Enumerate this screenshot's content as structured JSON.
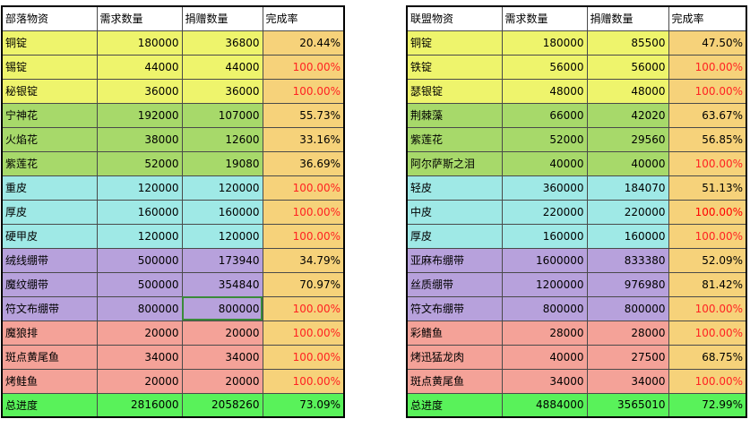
{
  "tribe": {
    "headers": [
      "部落物资",
      "需求数量",
      "捐赠数量",
      "完成率"
    ],
    "rows": [
      {
        "name": "铜锭",
        "need": "180000",
        "donated": "36800",
        "rate": "20.44%",
        "group": "yellow",
        "complete": false
      },
      {
        "name": "锡锭",
        "need": "44000",
        "donated": "44000",
        "rate": "100.00%",
        "group": "yellow",
        "complete": true
      },
      {
        "name": "秘银锭",
        "need": "36000",
        "donated": "36000",
        "rate": "100.00%",
        "group": "yellow",
        "complete": true
      },
      {
        "name": "宁神花",
        "need": "192000",
        "donated": "107000",
        "rate": "55.73%",
        "group": "green",
        "complete": false
      },
      {
        "name": "火焰花",
        "need": "38000",
        "donated": "12600",
        "rate": "33.16%",
        "group": "green",
        "complete": false
      },
      {
        "name": "紫莲花",
        "need": "52000",
        "donated": "19080",
        "rate": "36.69%",
        "group": "green",
        "complete": false
      },
      {
        "name": "重皮",
        "need": "120000",
        "donated": "120000",
        "rate": "100.00%",
        "group": "cyan",
        "complete": true
      },
      {
        "name": "厚皮",
        "need": "160000",
        "donated": "160000",
        "rate": "100.00%",
        "group": "cyan",
        "complete": true
      },
      {
        "name": "硬甲皮",
        "need": "120000",
        "donated": "120000",
        "rate": "100.00%",
        "group": "cyan",
        "complete": true
      },
      {
        "name": "绒线绷带",
        "need": "500000",
        "donated": "173940",
        "rate": "34.79%",
        "group": "purple",
        "complete": false
      },
      {
        "name": "魔纹绷带",
        "need": "500000",
        "donated": "354840",
        "rate": "70.97%",
        "group": "purple",
        "complete": false
      },
      {
        "name": "符文布绷带",
        "need": "800000",
        "donated": "800000",
        "rate": "100.00%",
        "group": "purple",
        "complete": true,
        "selected": true
      },
      {
        "name": "魔狼排",
        "need": "20000",
        "donated": "20000",
        "rate": "100.00%",
        "group": "pink",
        "complete": true
      },
      {
        "name": "斑点黄尾鱼",
        "need": "34000",
        "donated": "34000",
        "rate": "100.00%",
        "group": "pink",
        "complete": true
      },
      {
        "name": "烤鲑鱼",
        "need": "20000",
        "donated": "20000",
        "rate": "100.00%",
        "group": "pink",
        "complete": true
      }
    ],
    "total": {
      "name": "总进度",
      "need": "2816000",
      "donated": "2058260",
      "rate": "73.09%"
    }
  },
  "alliance": {
    "headers": [
      "联盟物资",
      "需求数量",
      "捐赠数量",
      "完成率"
    ],
    "rows": [
      {
        "name": "铜锭",
        "need": "180000",
        "donated": "85500",
        "rate": "47.50%",
        "group": "yellow",
        "complete": false
      },
      {
        "name": "铁锭",
        "need": "56000",
        "donated": "56000",
        "rate": "100.00%",
        "group": "yellow",
        "complete": true
      },
      {
        "name": "瑟银锭",
        "need": "48000",
        "donated": "48000",
        "rate": "100.00%",
        "group": "yellow",
        "complete": true
      },
      {
        "name": "荆棘藻",
        "need": "66000",
        "donated": "42020",
        "rate": "63.67%",
        "group": "green",
        "complete": false
      },
      {
        "name": "紫莲花",
        "need": "52000",
        "donated": "29560",
        "rate": "56.85%",
        "group": "green",
        "complete": false
      },
      {
        "name": "阿尔萨斯之泪",
        "need": "40000",
        "donated": "40000",
        "rate": "100.00%",
        "group": "green",
        "complete": true
      },
      {
        "name": "轻皮",
        "need": "360000",
        "donated": "184070",
        "rate": "51.13%",
        "group": "cyan",
        "complete": false
      },
      {
        "name": "中皮",
        "need": "220000",
        "donated": "220000",
        "rate": "100.00%",
        "group": "cyan",
        "complete": true,
        "hot": true
      },
      {
        "name": "厚皮",
        "need": "160000",
        "donated": "160000",
        "rate": "100.00%",
        "group": "cyan",
        "complete": true
      },
      {
        "name": "亚麻布绷带",
        "need": "1600000",
        "donated": "833380",
        "rate": "52.09%",
        "group": "purple",
        "complete": false
      },
      {
        "name": "丝质绷带",
        "need": "1200000",
        "donated": "976980",
        "rate": "81.42%",
        "group": "purple",
        "complete": false
      },
      {
        "name": "符文布绷带",
        "need": "800000",
        "donated": "800000",
        "rate": "100.00%",
        "group": "purple",
        "complete": true
      },
      {
        "name": "彩鳍鱼",
        "need": "28000",
        "donated": "28000",
        "rate": "100.00%",
        "group": "pink",
        "complete": true
      },
      {
        "name": "烤迅猛龙肉",
        "need": "40000",
        "donated": "27500",
        "rate": "68.75%",
        "group": "pink",
        "complete": false
      },
      {
        "name": "斑点黄尾鱼",
        "need": "34000",
        "donated": "34000",
        "rate": "100.00%",
        "group": "pink",
        "complete": true
      }
    ],
    "total": {
      "name": "总进度",
      "need": "4884000",
      "donated": "3565010",
      "rate": "72.99%"
    }
  }
}
